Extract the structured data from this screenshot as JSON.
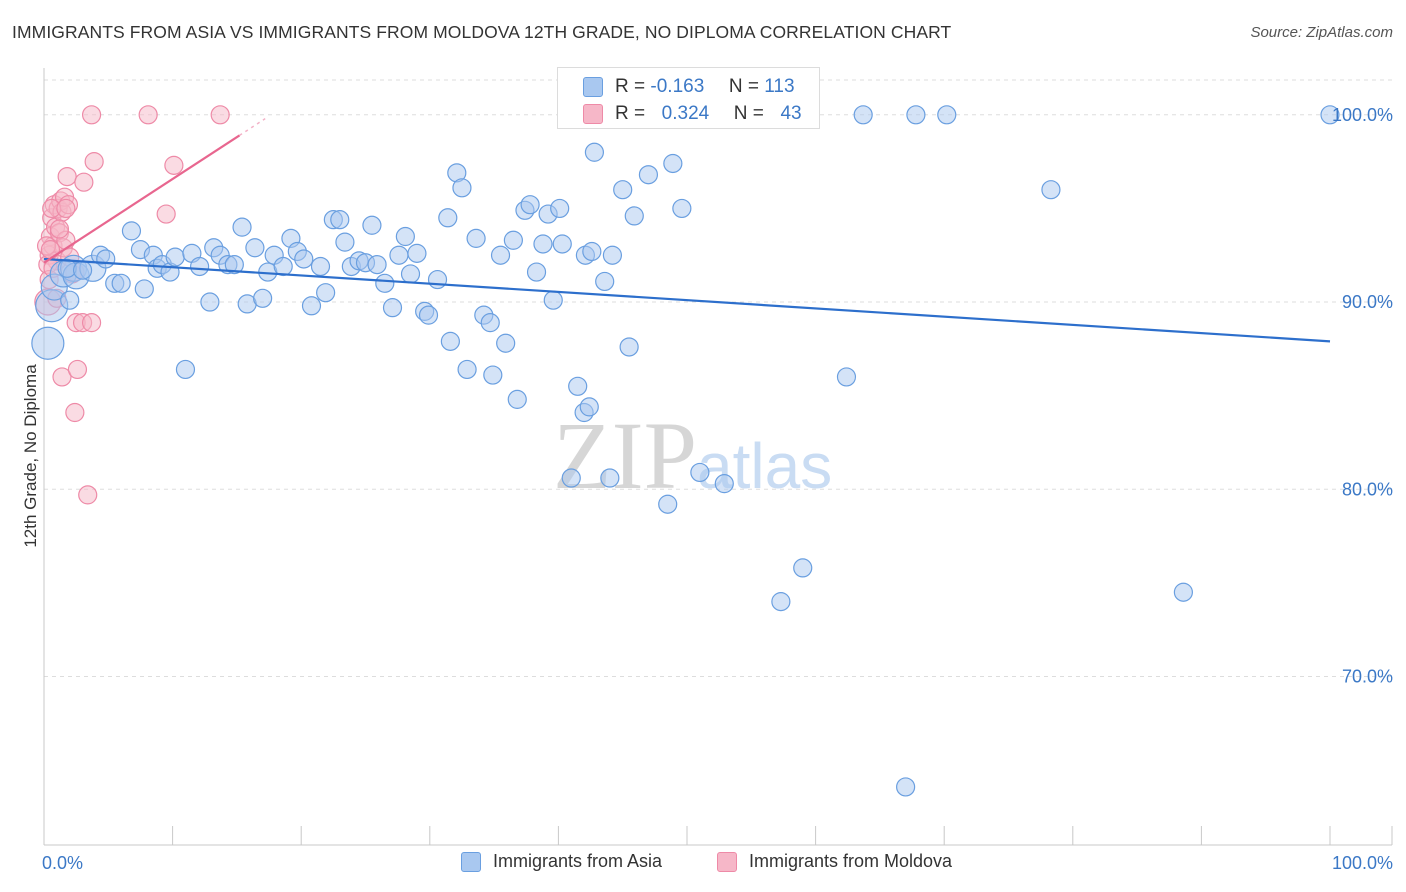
{
  "title": "IMMIGRANTS FROM ASIA VS IMMIGRANTS FROM MOLDOVA 12TH GRADE, NO DIPLOMA CORRELATION CHART",
  "source": "Source: ZipAtlas.com",
  "watermark": {
    "zip": "ZIP",
    "atlas": "atlas"
  },
  "colors": {
    "asia_fill": "#a9c8f0",
    "asia_stroke": "#6a9fe0",
    "asia_line": "#2d6fcc",
    "moldova_fill": "#f6b7c8",
    "moldova_stroke": "#ee8aa7",
    "moldova_line": "#e8668f",
    "axis_text": "#3b78c6",
    "grid": "#dddddd"
  },
  "stats": {
    "asia": {
      "r_label": "R =",
      "r_value": "-0.163",
      "n_label": "N =",
      "n_value": "113"
    },
    "moldova": {
      "r_label": "R =",
      "r_value": "0.324",
      "n_label": "N =",
      "n_value": "43"
    }
  },
  "legend": {
    "asia": "Immigrants from Asia",
    "moldova": "Immigrants from Moldova"
  },
  "chart_data": {
    "type": "scatter",
    "title": "IMMIGRANTS FROM ASIA VS IMMIGRANTS FROM MOLDOVA 12TH GRADE, NO DIPLOMA CORRELATION CHART",
    "xlabel": "",
    "ylabel": "12th Grade, No Diploma",
    "xlim": [
      0,
      100
    ],
    "ylim": [
      61,
      102.5
    ],
    "x_tick_labels": [
      "0.0%",
      "100.0%"
    ],
    "y_ticks": [
      70,
      80,
      90,
      100
    ],
    "y_tick_labels": [
      "70.0%",
      "80.0%",
      "90.0%",
      "100.0%"
    ],
    "grid": true,
    "legend_position": "bottom",
    "series": [
      {
        "name": "Immigrants from Asia",
        "trend": {
          "x": [
            0,
            100
          ],
          "y": [
            92.3,
            87.9
          ]
        },
        "points": [
          [
            0.3,
            87.8,
            3
          ],
          [
            0.6,
            89.8,
            3
          ],
          [
            0.8,
            90.8,
            2
          ],
          [
            1.5,
            91.5,
            2
          ],
          [
            2.3,
            91.8,
            2
          ],
          [
            2.5,
            91.4,
            2
          ],
          [
            3.8,
            91.8,
            2
          ],
          [
            4.4,
            92.5,
            1
          ],
          [
            4.8,
            92.3,
            1
          ],
          [
            5.5,
            91.0,
            1
          ],
          [
            6.0,
            91.0,
            1
          ],
          [
            6.8,
            93.8,
            1
          ],
          [
            7.5,
            92.8,
            1
          ],
          [
            7.8,
            90.7,
            1
          ],
          [
            8.5,
            92.5,
            1
          ],
          [
            8.8,
            91.8,
            1
          ],
          [
            9.2,
            92.0,
            1
          ],
          [
            9.8,
            91.6,
            1
          ],
          [
            10.2,
            92.4,
            1
          ],
          [
            11.0,
            86.4,
            1
          ],
          [
            11.5,
            92.6,
            1
          ],
          [
            12.1,
            91.9,
            1
          ],
          [
            12.9,
            90.0,
            1
          ],
          [
            13.2,
            92.9,
            1
          ],
          [
            13.7,
            92.5,
            1
          ],
          [
            14.3,
            92.0,
            1
          ],
          [
            14.8,
            92.0,
            1
          ],
          [
            15.4,
            94.0,
            1
          ],
          [
            15.8,
            89.9,
            1
          ],
          [
            16.4,
            92.9,
            1
          ],
          [
            17.0,
            90.2,
            1
          ],
          [
            17.4,
            91.6,
            1
          ],
          [
            17.9,
            92.5,
            1
          ],
          [
            18.6,
            91.9,
            1
          ],
          [
            19.2,
            93.4,
            1
          ],
          [
            19.7,
            92.7,
            1
          ],
          [
            20.2,
            92.3,
            1
          ],
          [
            20.8,
            89.8,
            1
          ],
          [
            21.5,
            91.9,
            1
          ],
          [
            21.9,
            90.5,
            1
          ],
          [
            22.5,
            94.4,
            1
          ],
          [
            23.0,
            94.4,
            1
          ],
          [
            23.4,
            93.2,
            1
          ],
          [
            23.9,
            91.9,
            1
          ],
          [
            24.5,
            92.2,
            1
          ],
          [
            25.0,
            92.1,
            1
          ],
          [
            25.5,
            94.1,
            1
          ],
          [
            25.9,
            92.0,
            1
          ],
          [
            26.5,
            91.0,
            1
          ],
          [
            27.1,
            89.7,
            1
          ],
          [
            27.6,
            92.5,
            1
          ],
          [
            28.1,
            93.5,
            1
          ],
          [
            28.5,
            91.5,
            1
          ],
          [
            29.0,
            92.6,
            1
          ],
          [
            29.6,
            89.5,
            1
          ],
          [
            29.9,
            89.3,
            1
          ],
          [
            30.6,
            91.2,
            1
          ],
          [
            31.4,
            94.5,
            1
          ],
          [
            31.6,
            87.9,
            1
          ],
          [
            32.1,
            96.9,
            1
          ],
          [
            32.5,
            96.1,
            1
          ],
          [
            32.9,
            86.4,
            1
          ],
          [
            33.6,
            93.4,
            1
          ],
          [
            34.2,
            89.3,
            1
          ],
          [
            34.7,
            88.9,
            1
          ],
          [
            34.9,
            86.1,
            1
          ],
          [
            35.5,
            92.5,
            1
          ],
          [
            35.9,
            87.8,
            1
          ],
          [
            36.5,
            93.3,
            1
          ],
          [
            36.8,
            84.8,
            1
          ],
          [
            37.4,
            94.9,
            1
          ],
          [
            37.8,
            95.2,
            1
          ],
          [
            38.3,
            91.6,
            1
          ],
          [
            38.8,
            93.1,
            1
          ],
          [
            39.2,
            94.7,
            1
          ],
          [
            39.6,
            90.1,
            1
          ],
          [
            40.1,
            95.0,
            1
          ],
          [
            40.3,
            93.1,
            1
          ],
          [
            41.0,
            80.6,
            1
          ],
          [
            41.5,
            85.5,
            1
          ],
          [
            42.0,
            84.1,
            1
          ],
          [
            42.4,
            84.4,
            1
          ],
          [
            42.1,
            92.5,
            1
          ],
          [
            42.6,
            92.7,
            1
          ],
          [
            42.8,
            98.0,
            1
          ],
          [
            43.6,
            91.1,
            1
          ],
          [
            44.0,
            80.6,
            1
          ],
          [
            44.2,
            92.5,
            1
          ],
          [
            45.0,
            96.0,
            1
          ],
          [
            45.5,
            87.6,
            1
          ],
          [
            45.9,
            94.6,
            1
          ],
          [
            47.0,
            96.8,
            1
          ],
          [
            48.5,
            79.2,
            1
          ],
          [
            48.9,
            97.4,
            1
          ],
          [
            49.6,
            95.0,
            1
          ],
          [
            50.0,
            100.0,
            1
          ],
          [
            51.0,
            80.9,
            1
          ],
          [
            52.9,
            80.3,
            1
          ],
          [
            57.3,
            74.0,
            1
          ],
          [
            59.0,
            75.8,
            1
          ],
          [
            62.4,
            86.0,
            1
          ],
          [
            63.7,
            100.0,
            1
          ],
          [
            67.0,
            64.1,
            1
          ],
          [
            67.8,
            100.0,
            1
          ],
          [
            70.2,
            100.0,
            1
          ],
          [
            78.3,
            96.0,
            1
          ],
          [
            88.6,
            74.5,
            1
          ],
          [
            100.0,
            100.0,
            1
          ],
          [
            1.8,
            91.8,
            1
          ],
          [
            3.0,
            91.7,
            1
          ],
          [
            2.0,
            90.1,
            1
          ]
        ]
      },
      {
        "name": "Immigrants from Moldova",
        "trend": {
          "x": [
            0,
            15.2
          ],
          "y": [
            92.1,
            98.9
          ]
        },
        "points": [
          [
            0.3,
            90.0,
            2
          ],
          [
            0.4,
            92.5,
            1
          ],
          [
            0.5,
            93.5,
            1
          ],
          [
            0.6,
            94.5,
            1
          ],
          [
            0.7,
            93.0,
            1
          ],
          [
            0.8,
            95.2,
            1
          ],
          [
            0.9,
            94.0,
            1
          ],
          [
            1.0,
            92.2,
            1
          ],
          [
            1.1,
            95.0,
            1
          ],
          [
            1.2,
            93.7,
            1
          ],
          [
            1.3,
            95.4,
            1
          ],
          [
            1.4,
            94.8,
            1
          ],
          [
            1.5,
            92.9,
            1
          ],
          [
            1.6,
            95.6,
            1
          ],
          [
            1.7,
            93.3,
            1
          ],
          [
            1.8,
            96.7,
            1
          ],
          [
            1.9,
            95.2,
            1
          ],
          [
            2.0,
            92.4,
            1
          ],
          [
            2.2,
            91.5,
            1
          ],
          [
            2.4,
            91.6,
            1
          ],
          [
            0.2,
            93.0,
            1
          ],
          [
            0.3,
            92.0,
            1
          ],
          [
            0.4,
            91.2,
            1
          ],
          [
            0.5,
            92.8,
            1
          ],
          [
            0.7,
            91.8,
            1
          ],
          [
            1.4,
            86.0,
            1
          ],
          [
            2.4,
            84.1,
            1
          ],
          [
            2.5,
            88.9,
            1
          ],
          [
            2.6,
            86.4,
            1
          ],
          [
            3.0,
            88.9,
            1
          ],
          [
            3.1,
            96.4,
            1
          ],
          [
            3.4,
            79.7,
            1
          ],
          [
            3.7,
            88.9,
            1
          ],
          [
            3.9,
            97.5,
            1
          ],
          [
            3.7,
            100.0,
            1
          ],
          [
            8.1,
            100.0,
            1
          ],
          [
            9.5,
            94.7,
            1
          ],
          [
            10.1,
            97.3,
            1
          ],
          [
            13.7,
            100.0,
            1
          ],
          [
            1.0,
            90.2,
            1
          ],
          [
            1.2,
            93.9,
            1
          ],
          [
            0.6,
            95.0,
            1
          ],
          [
            1.7,
            95.0,
            1
          ]
        ]
      }
    ]
  }
}
